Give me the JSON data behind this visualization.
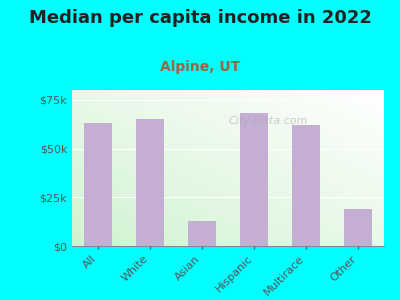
{
  "title": "Median per capita income in 2022",
  "subtitle": "Alpine, UT",
  "categories": [
    "All",
    "White",
    "Asian",
    "Hispanic",
    "Multirace",
    "Other"
  ],
  "values": [
    63000,
    65000,
    13000,
    68000,
    62000,
    19000
  ],
  "bar_color": "#c4aed4",
  "background_outer": "#00ffff",
  "plot_bg_left": "#d8eeda",
  "plot_bg_right": "#f0f8f0",
  "title_color": "#222222",
  "subtitle_color": "#996644",
  "tick_color": "#555555",
  "ylim": [
    0,
    80000
  ],
  "yticks": [
    0,
    25000,
    50000,
    75000
  ],
  "ytick_labels": [
    "$0",
    "$25k",
    "$50k",
    "$75k"
  ],
  "watermark": "City-Data.com",
  "title_fontsize": 13,
  "subtitle_fontsize": 10
}
